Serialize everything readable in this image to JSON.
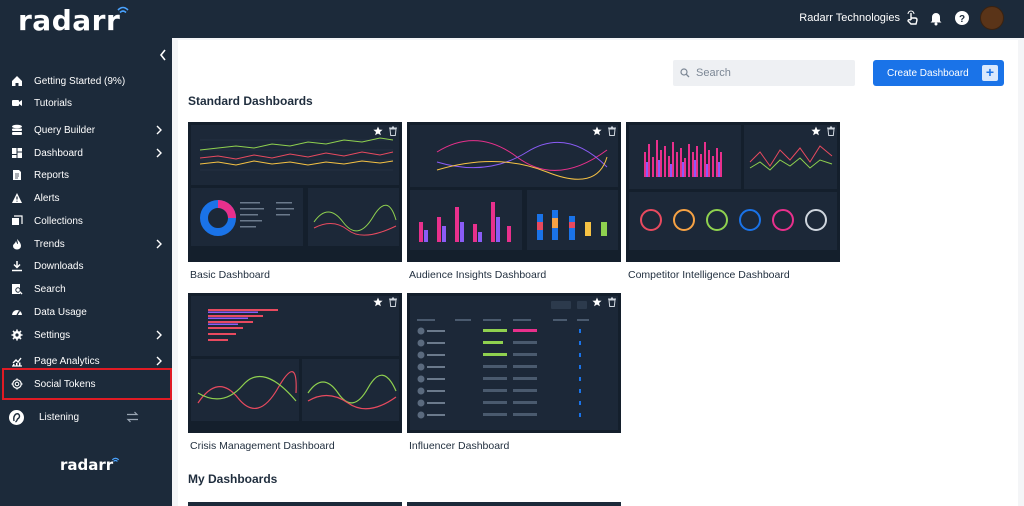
{
  "header": {
    "logo": "radarr",
    "company": "Radarr Technologies"
  },
  "sidebar": {
    "items": [
      {
        "label": "Getting Started (9%)",
        "icon": "home-icon",
        "chevron": false
      },
      {
        "label": "Tutorials",
        "icon": "video-icon",
        "chevron": false
      },
      {
        "label": "Query Builder",
        "icon": "database-icon",
        "chevron": true
      },
      {
        "label": "Dashboard",
        "icon": "dashboard-icon",
        "chevron": true
      },
      {
        "label": "Reports",
        "icon": "report-icon",
        "chevron": false
      },
      {
        "label": "Alerts",
        "icon": "alert-icon",
        "chevron": false
      },
      {
        "label": "Collections",
        "icon": "collections-icon",
        "chevron": false
      },
      {
        "label": "Trends",
        "icon": "trends-icon",
        "chevron": true
      },
      {
        "label": "Downloads",
        "icon": "download-icon",
        "chevron": false
      },
      {
        "label": "Search",
        "icon": "search-icon",
        "chevron": false
      },
      {
        "label": "Data Usage",
        "icon": "data-usage-icon",
        "chevron": false
      },
      {
        "label": "Settings",
        "icon": "settings-icon",
        "chevron": true
      },
      {
        "label": "Page Analytics",
        "icon": "analytics-icon",
        "chevron": true
      },
      {
        "label": "Social Tokens",
        "icon": "gear-icon",
        "chevron": false
      }
    ],
    "listening": "Listening",
    "footer_logo": "radarr"
  },
  "main": {
    "search_placeholder": "Search",
    "create_button": "Create Dashboard",
    "standard_title": "Standard Dashboards",
    "my_title": "My Dashboards",
    "dashboards": [
      {
        "label": "Basic Dashboard"
      },
      {
        "label": "Audience Insights Dashboard"
      },
      {
        "label": "Competitor Intelligence Dashboard"
      },
      {
        "label": "Crisis Management Dashboard"
      },
      {
        "label": "Influencer Dashboard"
      }
    ]
  },
  "colors": {
    "sidebar_bg": "#1c2a3a",
    "accent": "#1a73e8",
    "highlight": "#e01b24"
  }
}
